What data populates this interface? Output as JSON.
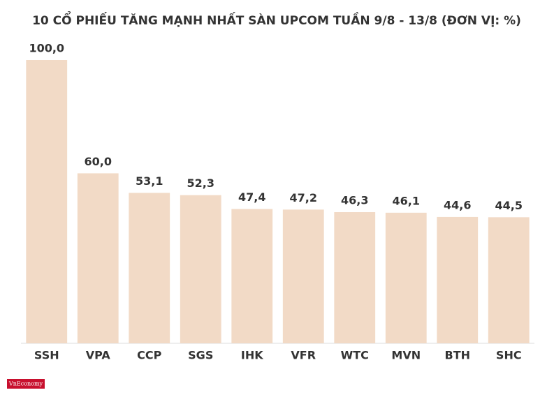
{
  "chart_data": {
    "type": "bar",
    "title": "10 CỔ PHIẾU TĂNG MẠNH NHẤT SÀN UPCOM TUẦN 9/8 - 13/8 (ĐƠN VỊ: %)",
    "categories": [
      "SSH",
      "VPA",
      "CCP",
      "SGS",
      "IHK",
      "VFR",
      "WTC",
      "MVN",
      "BTH",
      "SHC"
    ],
    "values": [
      100.0,
      60.0,
      53.1,
      52.3,
      47.4,
      47.2,
      46.3,
      46.1,
      44.6,
      44.5
    ],
    "value_labels": [
      "100,0",
      "60,0",
      "53,1",
      "52,3",
      "47,4",
      "47,2",
      "46,3",
      "46,1",
      "44,6",
      "44,5"
    ],
    "color": "#f2dac6",
    "ylim": [
      0,
      100
    ],
    "brand": "VnEconomy"
  }
}
